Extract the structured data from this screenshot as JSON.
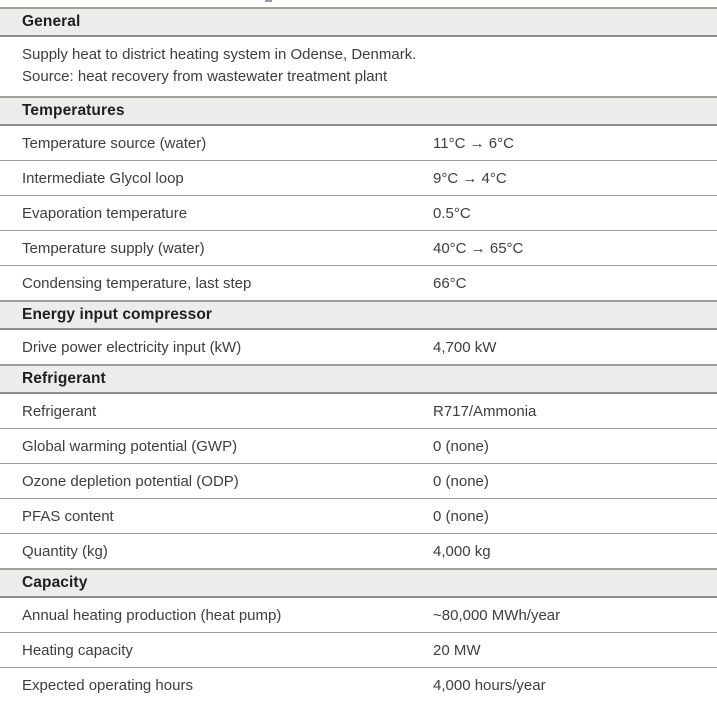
{
  "colors": {
    "page_bg": "#ffffff",
    "header_bg": "#ececea",
    "header_border_top": "#a3a09a",
    "header_border_bottom": "#8f8d89",
    "row_divider": "#9b9b98",
    "header_text": "#1f1f1f",
    "body_text": "#3d3d3d"
  },
  "sections": [
    {
      "title": "General",
      "description": [
        "Supply heat to district heating system in Odense, Denmark.",
        "Source: heat recovery from wastewater treatment plant"
      ],
      "rows": []
    },
    {
      "title": "Temperatures",
      "rows": [
        {
          "label": "Temperature source (water)",
          "value": "11°C → 6°C"
        },
        {
          "label": "Intermediate Glycol loop",
          "value": "9°C → 4°C"
        },
        {
          "label": "Evaporation temperature",
          "value": "0.5°C"
        },
        {
          "label": "Temperature supply (water)",
          "value": "40°C → 65°C"
        },
        {
          "label": "Condensing temperature, last step",
          "value": "66°C"
        }
      ]
    },
    {
      "title": "Energy input compressor",
      "rows": [
        {
          "label": "Drive power electricity input (kW)",
          "value": "4,700 kW"
        }
      ]
    },
    {
      "title": "Refrigerant",
      "rows": [
        {
          "label": "Refrigerant",
          "value": "R717/Ammonia"
        },
        {
          "label": "Global warming potential (GWP)",
          "value": "0 (none)"
        },
        {
          "label": "Ozone depletion potential (ODP)",
          "value": "0 (none)"
        },
        {
          "label": "PFAS content",
          "value": "0 (none)"
        },
        {
          "label": "Quantity (kg)",
          "value": "4,000 kg"
        }
      ]
    },
    {
      "title": "Capacity",
      "rows": [
        {
          "label": "Annual heating production (heat pump)",
          "value": "~80,000 MWh/year"
        },
        {
          "label": "Heating capacity",
          "value": "20 MW"
        },
        {
          "label": "Expected operating hours",
          "value": "4,000 hours/year"
        }
      ]
    }
  ]
}
